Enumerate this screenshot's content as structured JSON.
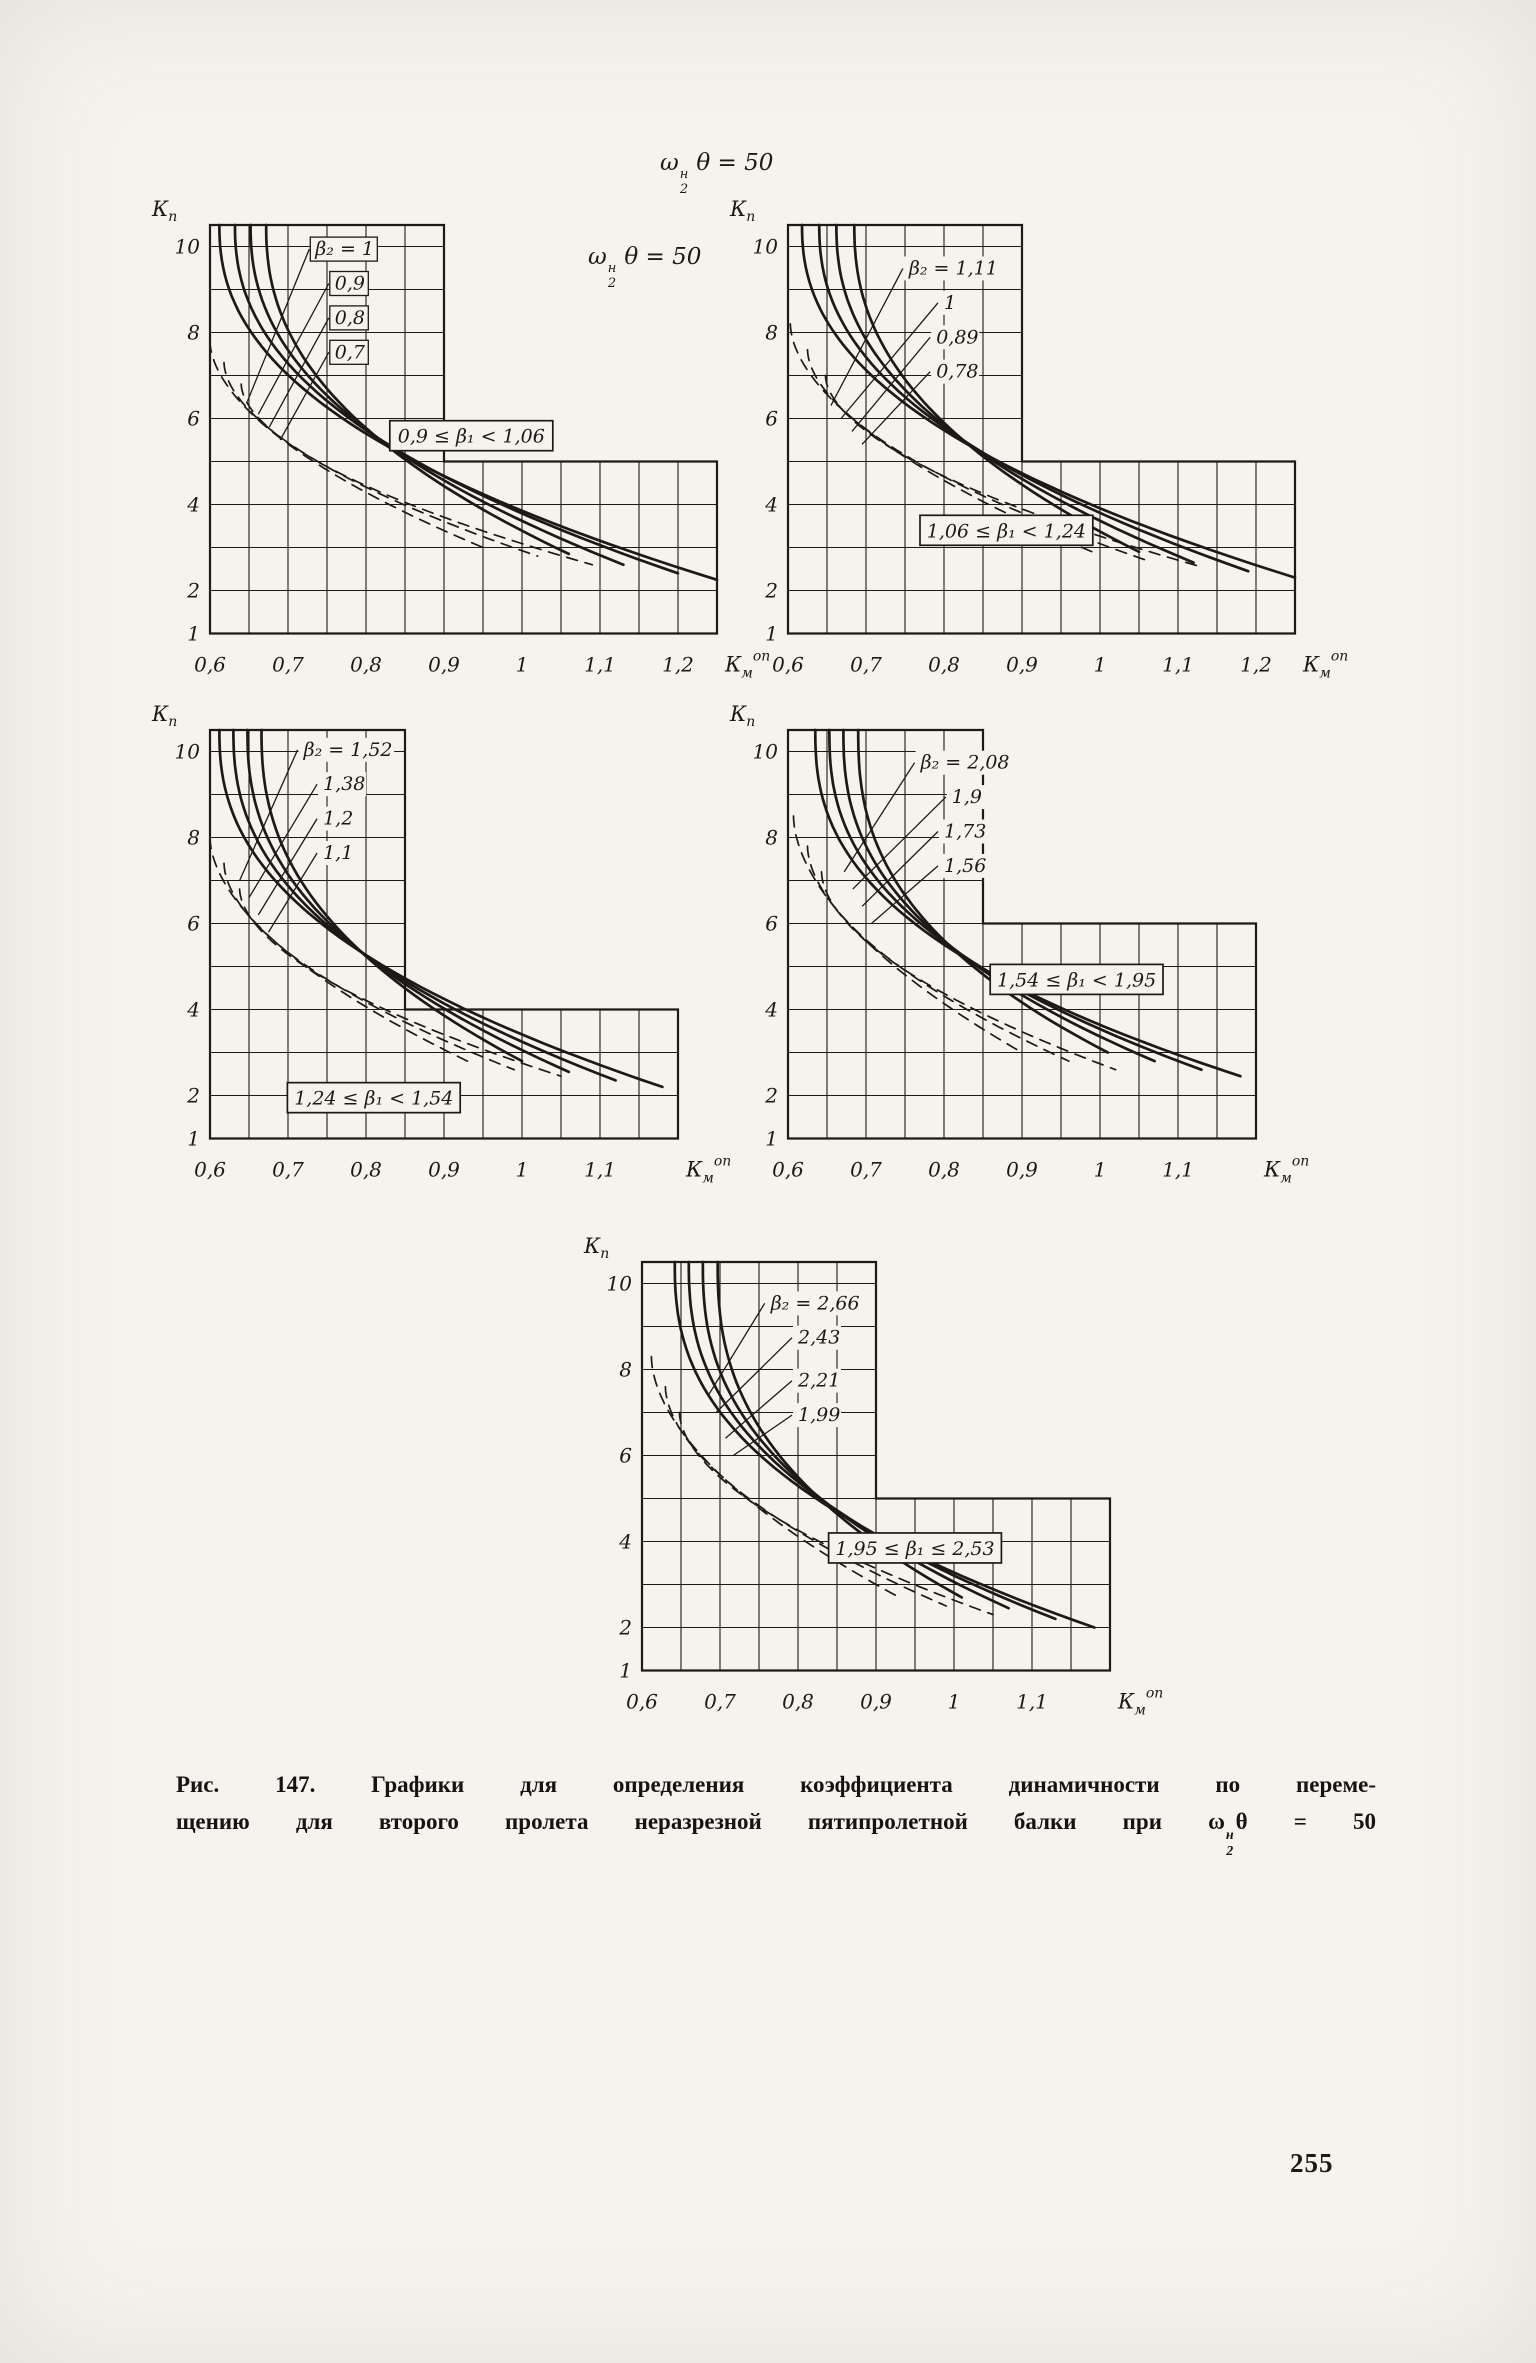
{
  "page": {
    "number": "255"
  },
  "headers": {
    "omega": "ω",
    "sup": "н",
    "sub": "2",
    "rest": "θ = 50"
  },
  "caption": {
    "line1": "Рис. 147. Графики для определения коэффициента динамичности по переме-",
    "line2_prefix": "щению для второго пролета неразрезной пятипролетной балки при",
    "omega": "ω",
    "omega_sup": "н",
    "omega_sub": "2",
    "suffix": "θ = 50"
  },
  "chart_data": [
    {
      "id": "c1",
      "type": "line",
      "x_range": [
        0.6,
        1.25
      ],
      "y_range": [
        1,
        10.5
      ],
      "grid_dx": 0.05,
      "grid_dy": 1,
      "step_x": 0.9,
      "short_top": 5,
      "x_ticks": [
        [
          "0,6",
          0.6
        ],
        [
          "0,7",
          0.7
        ],
        [
          "0,8",
          0.8
        ],
        [
          "0,9",
          0.9
        ],
        [
          "1",
          1.0
        ],
        [
          "1,1",
          1.1
        ],
        [
          "1,2",
          1.2
        ]
      ],
      "y_ticks": [
        [
          "1",
          1
        ],
        [
          "2",
          2
        ],
        [
          "4",
          4
        ],
        [
          "6",
          6
        ],
        [
          "8",
          8
        ],
        [
          "10",
          10
        ]
      ],
      "y_axis": {
        "main": "К",
        "sub": "п"
      },
      "x_axis": {
        "main": "К",
        "sub": "м",
        "sup": "оп"
      },
      "series": [
        {
          "name": "β₂ = 1",
          "style": "solid",
          "x_top": 0.612,
          "y_top": 10.5,
          "x_end": 1.25,
          "y_end": 2.25,
          "p": 2.3
        },
        {
          "name": "0,9",
          "style": "solid",
          "x_top": 0.632,
          "y_top": 10.5,
          "x_end": 1.2,
          "y_end": 2.4,
          "p": 2.3
        },
        {
          "name": "0,8",
          "style": "solid",
          "x_top": 0.652,
          "y_top": 10.5,
          "x_end": 1.13,
          "y_end": 2.6,
          "p": 2.3
        },
        {
          "name": "0,7",
          "style": "solid",
          "x_top": 0.672,
          "y_top": 10.5,
          "x_end": 1.06,
          "y_end": 2.85,
          "p": 2.3
        },
        {
          "name": "",
          "style": "dashed",
          "x_top": 0.6,
          "y_top": 7.8,
          "x_end": 0.95,
          "y_end": 3.0,
          "p": 1.8
        },
        {
          "name": "",
          "style": "dashed",
          "x_top": 0.618,
          "y_top": 7.3,
          "x_end": 1.02,
          "y_end": 2.8,
          "p": 1.8
        },
        {
          "name": "",
          "style": "dashed",
          "x_top": 0.64,
          "y_top": 6.8,
          "x_end": 1.09,
          "y_end": 2.6,
          "p": 1.8
        }
      ],
      "labels": [
        {
          "text": "β₂ = 1",
          "x": 0.735,
          "y": 9.8,
          "tx": 0.648,
          "ty": 6.4,
          "boxed": true
        },
        {
          "text": "0,9",
          "x": 0.76,
          "y": 9.0,
          "tx": 0.662,
          "ty": 6.1,
          "boxed": true
        },
        {
          "text": "0,8",
          "x": 0.76,
          "y": 8.2,
          "tx": 0.676,
          "ty": 5.8,
          "boxed": true
        },
        {
          "text": "0,7",
          "x": 0.76,
          "y": 7.4,
          "tx": 0.69,
          "ty": 5.5,
          "boxed": true
        }
      ],
      "range_box": {
        "text": "0,9 ≤ β₁ < 1,06",
        "cx": 0.935,
        "cy": 5.6
      }
    },
    {
      "id": "c2",
      "type": "line",
      "x_range": [
        0.6,
        1.25
      ],
      "y_range": [
        1,
        10.5
      ],
      "grid_dx": 0.05,
      "grid_dy": 1,
      "step_x": 0.9,
      "short_top": 5,
      "x_ticks": [
        [
          "0,6",
          0.6
        ],
        [
          "0,7",
          0.7
        ],
        [
          "0,8",
          0.8
        ],
        [
          "0,9",
          0.9
        ],
        [
          "1",
          1.0
        ],
        [
          "1,1",
          1.1
        ],
        [
          "1,2",
          1.2
        ]
      ],
      "y_ticks": [
        [
          "1",
          1
        ],
        [
          "2",
          2
        ],
        [
          "4",
          4
        ],
        [
          "6",
          6
        ],
        [
          "8",
          8
        ],
        [
          "10",
          10
        ]
      ],
      "y_axis": {
        "main": "К",
        "sub": "п"
      },
      "x_axis": {
        "main": "К",
        "sub": "м",
        "sup": "оп"
      },
      "series": [
        {
          "name": "β₂ = 1,11",
          "style": "solid",
          "x_top": 0.618,
          "y_top": 10.5,
          "x_end": 1.25,
          "y_end": 2.3,
          "p": 2.3
        },
        {
          "name": "1",
          "style": "solid",
          "x_top": 0.64,
          "y_top": 10.5,
          "x_end": 1.19,
          "y_end": 2.45,
          "p": 2.3
        },
        {
          "name": "0,89",
          "style": "solid",
          "x_top": 0.662,
          "y_top": 10.5,
          "x_end": 1.12,
          "y_end": 2.65,
          "p": 2.3
        },
        {
          "name": "0,78",
          "style": "solid",
          "x_top": 0.685,
          "y_top": 10.5,
          "x_end": 1.05,
          "y_end": 2.9,
          "p": 2.3
        },
        {
          "name": "",
          "style": "dashed",
          "x_top": 0.603,
          "y_top": 8.2,
          "x_end": 0.99,
          "y_end": 2.9,
          "p": 1.8
        },
        {
          "name": "",
          "style": "dashed",
          "x_top": 0.625,
          "y_top": 7.6,
          "x_end": 1.06,
          "y_end": 2.7,
          "p": 1.8
        },
        {
          "name": "",
          "style": "dashed",
          "x_top": 0.648,
          "y_top": 7.0,
          "x_end": 1.13,
          "y_end": 2.55,
          "p": 1.8
        }
      ],
      "labels": [
        {
          "text": "β₂ = 1,11",
          "x": 0.755,
          "y": 9.35,
          "tx": 0.655,
          "ty": 6.3,
          "boxed": false
        },
        {
          "text": "1",
          "x": 0.8,
          "y": 8.55,
          "tx": 0.668,
          "ty": 6.0,
          "boxed": false
        },
        {
          "text": "0,89",
          "x": 0.79,
          "y": 7.75,
          "tx": 0.682,
          "ty": 5.7,
          "boxed": false
        },
        {
          "text": "0,78",
          "x": 0.79,
          "y": 6.95,
          "tx": 0.695,
          "ty": 5.4,
          "boxed": false
        }
      ],
      "range_box": {
        "text": "1,06 ≤ β₁ < 1,24",
        "cx": 0.88,
        "cy": 3.4
      }
    },
    {
      "id": "c3",
      "type": "line",
      "x_range": [
        0.6,
        1.2
      ],
      "y_range": [
        1,
        10.5
      ],
      "grid_dx": 0.05,
      "grid_dy": 1,
      "step_x": 0.85,
      "short_top": 4,
      "x_ticks": [
        [
          "0,6",
          0.6
        ],
        [
          "0,7",
          0.7
        ],
        [
          "0,8",
          0.8
        ],
        [
          "0,9",
          0.9
        ],
        [
          "1",
          1.0
        ],
        [
          "1,1",
          1.1
        ]
      ],
      "y_ticks": [
        [
          "1",
          1
        ],
        [
          "2",
          2
        ],
        [
          "4",
          4
        ],
        [
          "6",
          6
        ],
        [
          "8",
          8
        ],
        [
          "10",
          10
        ]
      ],
      "y_axis": {
        "main": "К",
        "sub": "п"
      },
      "x_axis": {
        "main": "К",
        "sub": "м",
        "sup": "оп"
      },
      "series": [
        {
          "name": "β₂ = 1,52",
          "style": "solid",
          "x_top": 0.612,
          "y_top": 10.5,
          "x_end": 1.18,
          "y_end": 2.2,
          "p": 2.4
        },
        {
          "name": "1,38",
          "style": "solid",
          "x_top": 0.63,
          "y_top": 10.5,
          "x_end": 1.12,
          "y_end": 2.35,
          "p": 2.4
        },
        {
          "name": "1,2",
          "style": "solid",
          "x_top": 0.648,
          "y_top": 10.5,
          "x_end": 1.06,
          "y_end": 2.55,
          "p": 2.4
        },
        {
          "name": "1,1",
          "style": "solid",
          "x_top": 0.666,
          "y_top": 10.5,
          "x_end": 1.0,
          "y_end": 2.8,
          "p": 2.4
        },
        {
          "name": "",
          "style": "dashed",
          "x_top": 0.6,
          "y_top": 8.0,
          "x_end": 0.93,
          "y_end": 2.8,
          "p": 1.8
        },
        {
          "name": "",
          "style": "dashed",
          "x_top": 0.618,
          "y_top": 7.4,
          "x_end": 0.99,
          "y_end": 2.6,
          "p": 1.8
        },
        {
          "name": "",
          "style": "dashed",
          "x_top": 0.638,
          "y_top": 6.8,
          "x_end": 1.05,
          "y_end": 2.45,
          "p": 1.8
        }
      ],
      "labels": [
        {
          "text": "β₂ = 1,52",
          "x": 0.72,
          "y": 9.9,
          "tx": 0.638,
          "ty": 7.0,
          "boxed": false
        },
        {
          "text": "1,38",
          "x": 0.745,
          "y": 9.1,
          "tx": 0.65,
          "ty": 6.6,
          "boxed": false
        },
        {
          "text": "1,2",
          "x": 0.745,
          "y": 8.3,
          "tx": 0.662,
          "ty": 6.2,
          "boxed": false
        },
        {
          "text": "1,1",
          "x": 0.745,
          "y": 7.5,
          "tx": 0.675,
          "ty": 5.8,
          "boxed": false
        }
      ],
      "range_box": {
        "text": "1,24 ≤ β₁ < 1,54",
        "cx": 0.81,
        "cy": 1.95
      }
    },
    {
      "id": "c4",
      "type": "line",
      "x_range": [
        0.6,
        1.2
      ],
      "y_range": [
        1,
        10.5
      ],
      "grid_dx": 0.05,
      "grid_dy": 1,
      "step_x": 0.85,
      "short_top": 6,
      "x_ticks": [
        [
          "0,6",
          0.6
        ],
        [
          "0,7",
          0.7
        ],
        [
          "0,8",
          0.8
        ],
        [
          "0,9",
          0.9
        ],
        [
          "1",
          1.0
        ],
        [
          "1,1",
          1.1
        ]
      ],
      "y_ticks": [
        [
          "1",
          1
        ],
        [
          "2",
          2
        ],
        [
          "4",
          4
        ],
        [
          "6",
          6
        ],
        [
          "8",
          8
        ],
        [
          "10",
          10
        ]
      ],
      "y_axis": {
        "main": "К",
        "sub": "п"
      },
      "x_axis": {
        "main": "К",
        "sub": "м",
        "sup": "оп"
      },
      "series": [
        {
          "name": "β₂ = 2,08",
          "style": "solid",
          "x_top": 0.635,
          "y_top": 10.5,
          "x_end": 1.18,
          "y_end": 2.45,
          "p": 2.5
        },
        {
          "name": "1,9",
          "style": "solid",
          "x_top": 0.653,
          "y_top": 10.5,
          "x_end": 1.13,
          "y_end": 2.6,
          "p": 2.5
        },
        {
          "name": "1,73",
          "style": "solid",
          "x_top": 0.671,
          "y_top": 10.5,
          "x_end": 1.07,
          "y_end": 2.8,
          "p": 2.5
        },
        {
          "name": "1,56",
          "style": "solid",
          "x_top": 0.69,
          "y_top": 10.5,
          "x_end": 1.01,
          "y_end": 3.0,
          "p": 2.5
        },
        {
          "name": "",
          "style": "dashed",
          "x_top": 0.607,
          "y_top": 8.5,
          "x_end": 0.9,
          "y_end": 3.0,
          "p": 1.8
        },
        {
          "name": "",
          "style": "dashed",
          "x_top": 0.625,
          "y_top": 7.8,
          "x_end": 0.96,
          "y_end": 2.8,
          "p": 1.8
        },
        {
          "name": "",
          "style": "dashed",
          "x_top": 0.643,
          "y_top": 7.2,
          "x_end": 1.02,
          "y_end": 2.6,
          "p": 1.8
        }
      ],
      "labels": [
        {
          "text": "β₂ = 2,08",
          "x": 0.77,
          "y": 9.6,
          "tx": 0.672,
          "ty": 7.2,
          "boxed": false
        },
        {
          "text": "1,9",
          "x": 0.81,
          "y": 8.8,
          "tx": 0.683,
          "ty": 6.8,
          "boxed": false
        },
        {
          "text": "1,73",
          "x": 0.8,
          "y": 8.0,
          "tx": 0.695,
          "ty": 6.4,
          "boxed": false
        },
        {
          "text": "1,56",
          "x": 0.8,
          "y": 7.2,
          "tx": 0.707,
          "ty": 6.0,
          "boxed": false
        }
      ],
      "range_box": {
        "text": "1,54 ≤ β₁ < 1,95",
        "cx": 0.97,
        "cy": 4.7
      }
    },
    {
      "id": "c5",
      "type": "line",
      "x_range": [
        0.6,
        1.2
      ],
      "y_range": [
        1,
        10.5
      ],
      "grid_dx": 0.05,
      "grid_dy": 1,
      "step_x": 0.9,
      "short_top": 5,
      "x_ticks": [
        [
          "0,6",
          0.6
        ],
        [
          "0,7",
          0.7
        ],
        [
          "0,8",
          0.8
        ],
        [
          "0,9",
          0.9
        ],
        [
          "1",
          1.0
        ],
        [
          "1,1",
          1.1
        ]
      ],
      "y_ticks": [
        [
          "1",
          1
        ],
        [
          "2",
          2
        ],
        [
          "4",
          4
        ],
        [
          "6",
          6
        ],
        [
          "8",
          8
        ],
        [
          "10",
          10
        ]
      ],
      "y_axis": {
        "main": "К",
        "sub": "п"
      },
      "x_axis": {
        "main": "К",
        "sub": "м",
        "sup": "оп"
      },
      "series": [
        {
          "name": "β₂ = 2,66",
          "style": "solid",
          "x_top": 0.642,
          "y_top": 10.5,
          "x_end": 1.18,
          "y_end": 2.0,
          "p": 2.5
        },
        {
          "name": "2,43",
          "style": "solid",
          "x_top": 0.66,
          "y_top": 10.5,
          "x_end": 1.13,
          "y_end": 2.2,
          "p": 2.5
        },
        {
          "name": "2,21",
          "style": "solid",
          "x_top": 0.678,
          "y_top": 10.5,
          "x_end": 1.07,
          "y_end": 2.45,
          "p": 2.5
        },
        {
          "name": "1,99",
          "style": "solid",
          "x_top": 0.697,
          "y_top": 10.5,
          "x_end": 1.01,
          "y_end": 2.7,
          "p": 2.5
        },
        {
          "name": "",
          "style": "dashed",
          "x_top": 0.612,
          "y_top": 8.3,
          "x_end": 0.93,
          "y_end": 2.7,
          "p": 1.8
        },
        {
          "name": "",
          "style": "dashed",
          "x_top": 0.63,
          "y_top": 7.6,
          "x_end": 0.99,
          "y_end": 2.5,
          "p": 1.8
        },
        {
          "name": "",
          "style": "dashed",
          "x_top": 0.648,
          "y_top": 7.0,
          "x_end": 1.05,
          "y_end": 2.3,
          "p": 1.8
        }
      ],
      "labels": [
        {
          "text": "β₂ = 2,66",
          "x": 0.765,
          "y": 9.4,
          "tx": 0.685,
          "ty": 7.4,
          "boxed": false
        },
        {
          "text": "2,43",
          "x": 0.8,
          "y": 8.6,
          "tx": 0.695,
          "ty": 7.0,
          "boxed": false
        },
        {
          "text": "2,21",
          "x": 0.8,
          "y": 7.6,
          "tx": 0.707,
          "ty": 6.4,
          "boxed": false
        },
        {
          "text": "1,99",
          "x": 0.8,
          "y": 6.8,
          "tx": 0.717,
          "ty": 6.0,
          "boxed": false
        }
      ],
      "range_box": {
        "text": "1,95 ≤ β₁ ≤ 2,53",
        "cx": 0.95,
        "cy": 3.85
      }
    }
  ]
}
